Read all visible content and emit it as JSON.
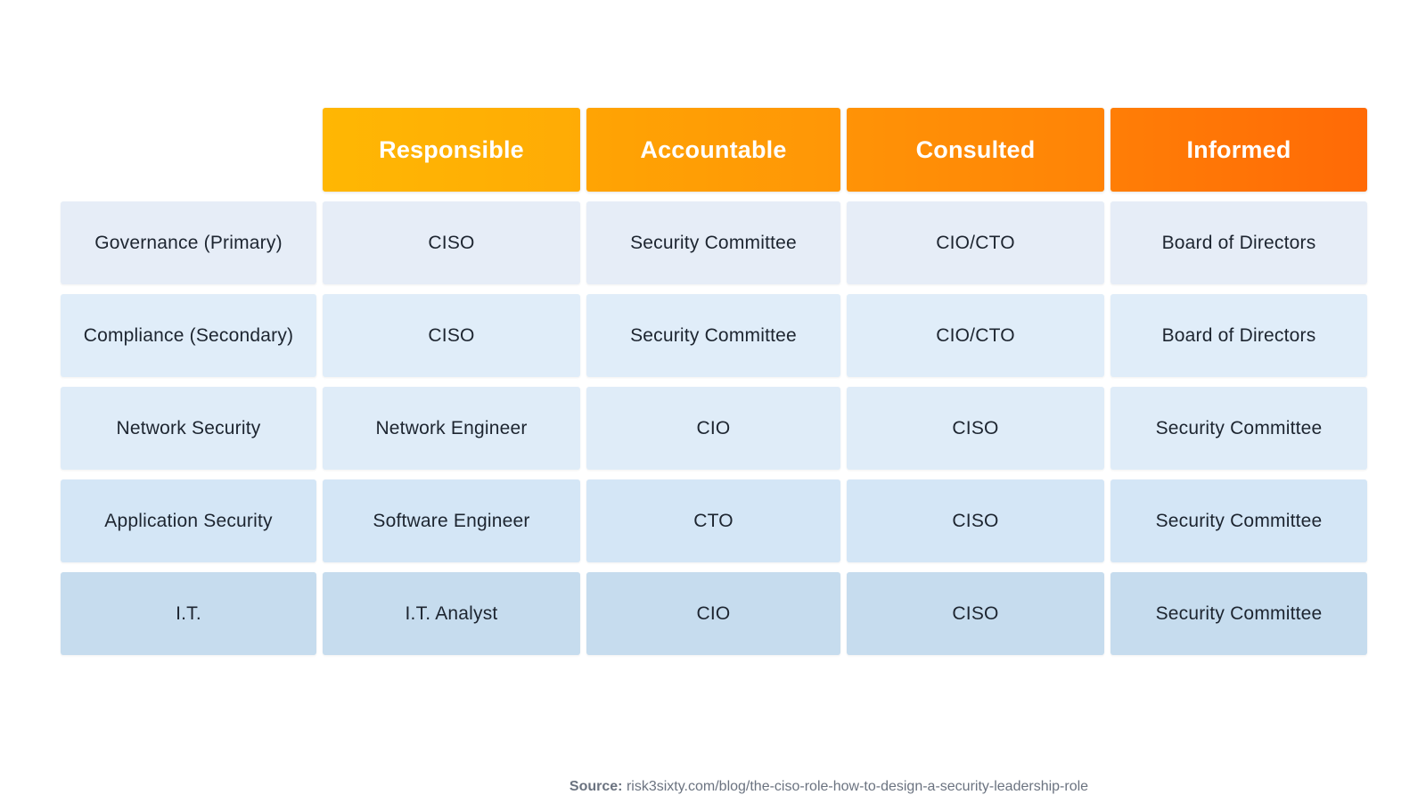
{
  "header": {
    "columns": [
      "Responsible",
      "Accountable",
      "Consulted",
      "Informed"
    ],
    "colors": [
      "#ffb703",
      "#ff9f05",
      "#ff8b06",
      "#ff7506"
    ]
  },
  "rows": [
    {
      "label": "Governance (Primary)",
      "cells": [
        "CISO",
        "Security Committee",
        "CIO/CTO",
        "Board of Directors"
      ]
    },
    {
      "label": "Compliance (Secondary)",
      "cells": [
        "CISO",
        "Security Committee",
        "CIO/CTO",
        "Board of Directors"
      ]
    },
    {
      "label": "Network Security",
      "cells": [
        "Network Engineer",
        "CIO",
        "CISO",
        "Security Committee"
      ]
    },
    {
      "label": "Application Security",
      "cells": [
        "Software Engineer",
        "CTO",
        "CISO",
        "Security Committee"
      ]
    },
    {
      "label": "I.T.",
      "cells": [
        "I.T. Analyst",
        "CIO",
        "CISO",
        "Security Committee"
      ]
    }
  ],
  "source": {
    "label": "Source:",
    "text": "risk3sixty.com/blog/the-ciso-role-how-to-design-a-security-leadership-role"
  }
}
